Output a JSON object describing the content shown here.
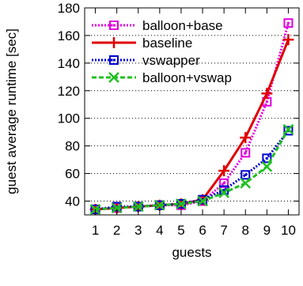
{
  "chart_data": {
    "type": "line",
    "xlabel": "guests",
    "ylabel": "guest average runtime [sec]",
    "x": [
      1,
      2,
      3,
      4,
      5,
      6,
      7,
      8,
      9,
      10
    ],
    "xlim": [
      0.5,
      10.5
    ],
    "ylim": [
      30,
      180
    ],
    "yticks": [
      40,
      60,
      80,
      100,
      120,
      140,
      160,
      180
    ],
    "grid": "y",
    "legend_position": "top-left",
    "series": [
      {
        "name": "balloon+base",
        "values": [
          34,
          35,
          36,
          37,
          37,
          40,
          53,
          75,
          112,
          169
        ],
        "color": "#e000e0",
        "marker": "square-dot",
        "line": "dotted"
      },
      {
        "name": "baseline",
        "values": [
          34,
          35,
          36,
          37,
          38,
          41,
          62,
          86,
          118,
          157
        ],
        "color": "#e00000",
        "marker": "plus",
        "line": "solid"
      },
      {
        "name": "vswapper",
        "values": [
          34,
          36,
          36,
          37,
          38,
          41,
          48,
          59,
          71,
          91
        ],
        "color": "#0000d0",
        "marker": "square-dot",
        "line": "dotted"
      },
      {
        "name": "balloon+vswap",
        "values": [
          34,
          35,
          36,
          37,
          38,
          40,
          46,
          53,
          65,
          92
        ],
        "color": "#20c020",
        "marker": "x",
        "line": "dashed"
      }
    ]
  }
}
